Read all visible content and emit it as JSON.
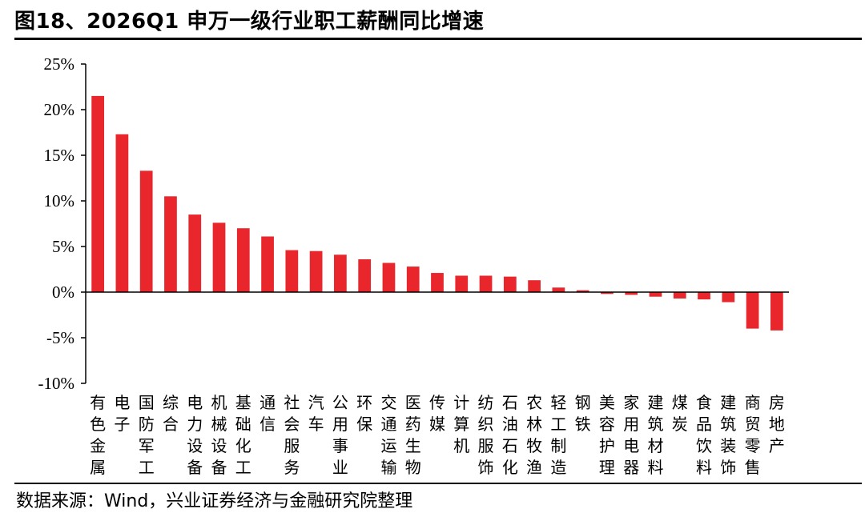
{
  "title": "图18、2026Q1 申万一级行业职工薪酬同比增速",
  "source": "数据来源：Wind，兴业证券经济与金融研究院整理",
  "chart_data": {
    "type": "bar",
    "title": "图18、2026Q1 申万一级行业职工薪酬同比增速",
    "xlabel": "",
    "ylabel": "",
    "ylim": [
      -10,
      25
    ],
    "yticks": [
      25,
      20,
      15,
      10,
      5,
      0,
      -5,
      -10
    ],
    "ytick_labels": [
      "25%",
      "20%",
      "15%",
      "10%",
      "5%",
      "0%",
      "-5%",
      "-10%"
    ],
    "grid": false,
    "legend": "none",
    "bar_color": "#e8262b",
    "categories": [
      "有色金属",
      "电子",
      "国防军工",
      "综合",
      "电力设备",
      "机械设备",
      "基础化工",
      "通信",
      "社会服务",
      "汽车",
      "公用事业",
      "环保",
      "交通运输",
      "医药生物",
      "传媒",
      "计算机",
      "纺织服饰",
      "石油石化",
      "农林牧渔",
      "轻工制造",
      "钢铁",
      "美容护理",
      "家用电器",
      "建筑材料",
      "煤炭",
      "食品饮料",
      "建筑装饰",
      "商贸零售",
      "房地产"
    ],
    "values": [
      21.5,
      17.3,
      13.3,
      10.5,
      8.5,
      7.6,
      7.0,
      6.1,
      4.6,
      4.5,
      4.1,
      3.6,
      3.2,
      2.8,
      2.1,
      1.8,
      1.8,
      1.7,
      1.3,
      0.5,
      0.2,
      -0.2,
      -0.3,
      -0.5,
      -0.7,
      -0.8,
      -1.1,
      -4.0,
      -4.2
    ]
  }
}
